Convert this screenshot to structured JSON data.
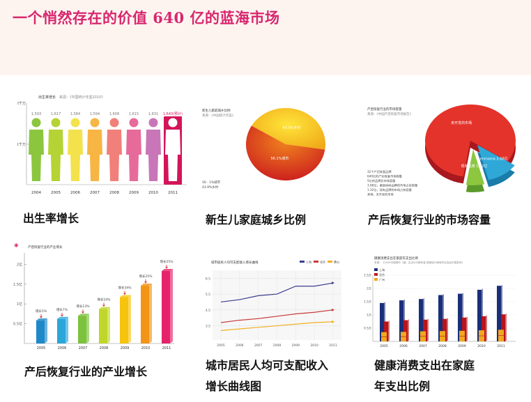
{
  "header": {
    "title": "一个悄然存在的价值 640 亿的蓝海市场"
  },
  "captions": {
    "c1": "出生率增长",
    "c2": "新生儿家庭城乡比例",
    "c3": "产后恢复行业的市场容量",
    "c4": "产后恢复行业的产业增长",
    "c5a": "城市居民人均可支配收入",
    "c5b": "增长曲线图",
    "c6a": "健康消费支出在家庭",
    "c6b": "年支出比例"
  },
  "colors": {
    "title": "#d8266e",
    "header_bg": "#fdf4f0"
  },
  "chart_data": [
    {
      "type": "bar",
      "title": "出生率增长",
      "source": "来源：《中国统计年鉴2010》",
      "y_ticks": [
        "2千万",
        "1千万"
      ],
      "categories": [
        "2004",
        "2005",
        "2006",
        "2007",
        "2008",
        "2009",
        "2010",
        "2011"
      ],
      "value_labels": [
        "1,593",
        "1,617",
        "1,584",
        "1,594",
        "1,608",
        "1,615",
        "1,631",
        "1,643(预计)"
      ],
      "values": [
        1593,
        1617,
        1584,
        1594,
        1608,
        1615,
        1631,
        1643
      ],
      "colors": [
        "#8cc63f",
        "#b5d334",
        "#f4e24d",
        "#f7b543",
        "#f08079",
        "#e76b9a",
        "#c876b8",
        "#d4145a"
      ]
    },
    {
      "type": "pie",
      "title": "新生儿家庭城乡比例",
      "source": "来源：《中国统计年鉴》",
      "slices": [
        {
          "label": "43.9%乡村",
          "value": 43.9,
          "color": "#f7e43a"
        },
        {
          "label": "56.1%城市",
          "value": 56.1,
          "color": "#e0421a"
        }
      ],
      "legend": [
        "56 · 1%城市",
        "43.9%乡村"
      ]
    },
    {
      "type": "pie",
      "title": "产后恢复行业的市场容量",
      "source": "来源：《中国产后恢复市场报告》",
      "slices": [
        {
          "label": "未开发的市场",
          "value": 82,
          "color": "#e4332a"
        },
        {
          "label": "zichenmama 3.68亿",
          "value": 11.5,
          "color": "#2fa8d8"
        },
        {
          "label": "现有品牌 1.32亿",
          "value": 6.5,
          "color": "#8dc63f"
        }
      ],
      "notes": [
        "32个产后恢复品牌",
        "640亿的产后恢复市场容量",
        "5亿的品牌总市场容量",
        "3.68亿，紫辰妈妈品牌的市场占有容量",
        "1.32亿，现有品牌的市场占有容量",
        "其他，未开发的市场"
      ]
    },
    {
      "type": "bar",
      "title": "产后恢复行业的产业增长",
      "y_ticks": [
        "2亿",
        "1.5亿",
        "1亿",
        "0.5亿"
      ],
      "categories": [
        "2005",
        "2006",
        "2007",
        "2008",
        "2009",
        "2010",
        "2011"
      ],
      "value_labels": [
        "增长5%",
        "增长7%",
        "增长13%",
        "增长24%",
        "增长34%",
        "增长25%",
        "增长25%"
      ],
      "values": [
        0.58,
        0.62,
        0.7,
        0.87,
        1.17,
        1.46,
        1.83
      ],
      "colors": [
        "#1e88c8",
        "#2aa6d9",
        "#7cc23c",
        "#c0d62a",
        "#f6c40e",
        "#f39416",
        "#e5226a"
      ],
      "ylim": [
        0,
        2.2
      ]
    },
    {
      "type": "line",
      "title": "城市居民人均可支配收入增长曲线",
      "x": [
        "2005",
        "2006",
        "2007",
        "2008",
        "2009",
        "2010",
        "2011"
      ],
      "y_ticks": [
        "6.5",
        "5.5",
        "4.5",
        "3.5"
      ],
      "series": [
        {
          "name": "上海",
          "color": "#3a3d8f",
          "values": [
            5.0,
            5.15,
            5.4,
            5.5,
            6.0,
            6.0,
            6.2
          ]
        },
        {
          "name": "北京",
          "color": "#c83a3a",
          "values": [
            3.7,
            3.85,
            3.95,
            4.1,
            4.25,
            4.35,
            4.5
          ]
        },
        {
          "name": "佛山",
          "color": "#f0b020",
          "values": [
            3.2,
            3.3,
            3.4,
            3.5,
            3.6,
            3.7,
            3.75
          ]
        }
      ],
      "ylim": [
        2.6,
        7.0
      ]
    },
    {
      "type": "bar",
      "title": "健康消费支出在家庭年支出比例",
      "source": "来源：《2009中国城市（镇）生活与行程年鉴 国家统计局城市社会经济调查司》",
      "categories": [
        "2005",
        "2006",
        "2007",
        "2008",
        "2009",
        "2010",
        "2011"
      ],
      "y_ticks": [
        "2.5万",
        "2万",
        "1.5万",
        "1万",
        "0.5万"
      ],
      "series": [
        {
          "name": "上海",
          "color": "#1a2f7a",
          "values": [
            1.45,
            1.55,
            1.6,
            1.75,
            1.8,
            1.95,
            2.1
          ]
        },
        {
          "name": "北京",
          "color": "#b8141a",
          "values": [
            0.75,
            0.8,
            0.82,
            0.85,
            0.9,
            0.95,
            1.02
          ]
        },
        {
          "name": "广州",
          "color": "#f0a81e",
          "values": [
            0.35,
            0.36,
            0.38,
            0.39,
            0.4,
            0.42,
            0.44
          ]
        }
      ],
      "ylim": [
        0,
        2.5
      ]
    }
  ]
}
